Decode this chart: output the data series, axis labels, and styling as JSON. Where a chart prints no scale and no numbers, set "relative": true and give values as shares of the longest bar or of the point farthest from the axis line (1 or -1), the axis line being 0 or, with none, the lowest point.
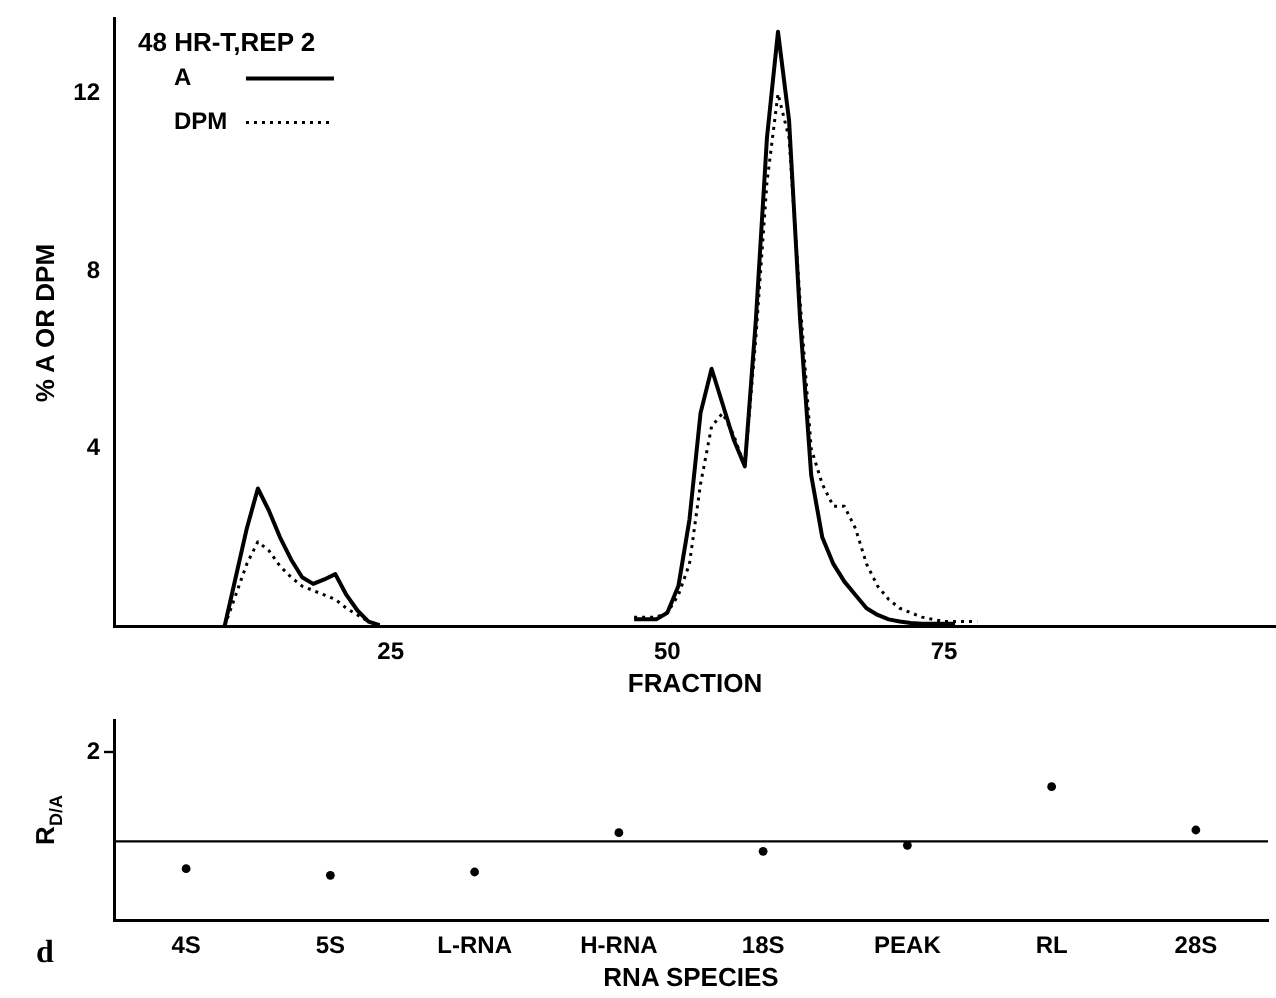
{
  "chart_data": [
    {
      "type": "line",
      "title": "48 HR-T,REP 2",
      "xlabel": "FRACTION",
      "ylabel": "% A OR DPM",
      "xlim": [
        0,
        105
      ],
      "xticks": [
        25,
        50,
        75
      ],
      "ylim": [
        0,
        13.7
      ],
      "yticks": [
        4,
        8,
        12
      ],
      "legend": "top left",
      "series": [
        {
          "name": "A",
          "color": "#000000",
          "line_style": "solid",
          "x": [
            10,
            11,
            12,
            13,
            14,
            15,
            16,
            17,
            18,
            19,
            20,
            21,
            22,
            23,
            24,
            35,
            47,
            48,
            49,
            50,
            51,
            52,
            53,
            54,
            55,
            56,
            57,
            58,
            59,
            60,
            61,
            62,
            63,
            64,
            65,
            66,
            67,
            68,
            69,
            70,
            71,
            72,
            73,
            74,
            75,
            76
          ],
          "values": [
            0,
            1.1,
            2.2,
            3.1,
            2.6,
            2.0,
            1.5,
            1.1,
            0.95,
            1.05,
            1.17,
            0.7,
            0.35,
            0.1,
            0.02,
            null,
            0.15,
            0.15,
            0.15,
            0.3,
            0.9,
            2.4,
            4.8,
            5.8,
            5.0,
            4.2,
            3.6,
            6.9,
            11.0,
            13.4,
            11.4,
            6.9,
            3.4,
            2.0,
            1.4,
            1.0,
            0.7,
            0.4,
            0.25,
            0.15,
            0.1,
            0.07,
            0.05,
            0.05,
            0.05,
            0.05
          ]
        },
        {
          "name": "DPM",
          "color": "#000000",
          "line_style": "dotted",
          "x": [
            10,
            11,
            12,
            13,
            14,
            15,
            16,
            17,
            18,
            19,
            20,
            21,
            22,
            23,
            24,
            35,
            47,
            48,
            49,
            50,
            51,
            52,
            53,
            54,
            55,
            56,
            57,
            58,
            59,
            60,
            61,
            62,
            63,
            64,
            65,
            66,
            67,
            68,
            69,
            70,
            71,
            72,
            73,
            74,
            75,
            76,
            77,
            78
          ],
          "values": [
            0,
            0.7,
            1.4,
            1.9,
            1.7,
            1.35,
            1.1,
            0.9,
            0.8,
            0.7,
            0.6,
            0.4,
            0.25,
            0.1,
            0.02,
            null,
            0.2,
            0.2,
            0.2,
            0.3,
            0.7,
            1.4,
            3.2,
            4.5,
            4.8,
            4.3,
            3.6,
            6.5,
            10.0,
            12.0,
            11.0,
            7.3,
            4.0,
            3.2,
            2.7,
            2.7,
            2.2,
            1.4,
            0.9,
            0.6,
            0.4,
            0.3,
            0.2,
            0.15,
            0.1,
            0.1,
            0.1,
            0.1
          ]
        }
      ]
    },
    {
      "type": "scatter",
      "xlabel": "RNA SPECIES",
      "ylabel": "R$_{D/A}$",
      "relative": true,
      "categories": [
        "4S",
        "5S",
        "L-RNA",
        "H-RNA",
        "18S",
        "PEAK",
        "RL",
        "28S"
      ],
      "marker": "circle",
      "values": [
        0.385,
        0.335,
        0.36,
        0.655,
        0.515,
        0.56,
        1,
        0.675
      ],
      "color": "#000000",
      "ref_lines": [
        {
          "axis": "y",
          "value": 0.59,
          "color": "#000000",
          "line_style": "solid"
        }
      ],
      "annotations": [
        "d",
        "2"
      ]
    }
  ]
}
